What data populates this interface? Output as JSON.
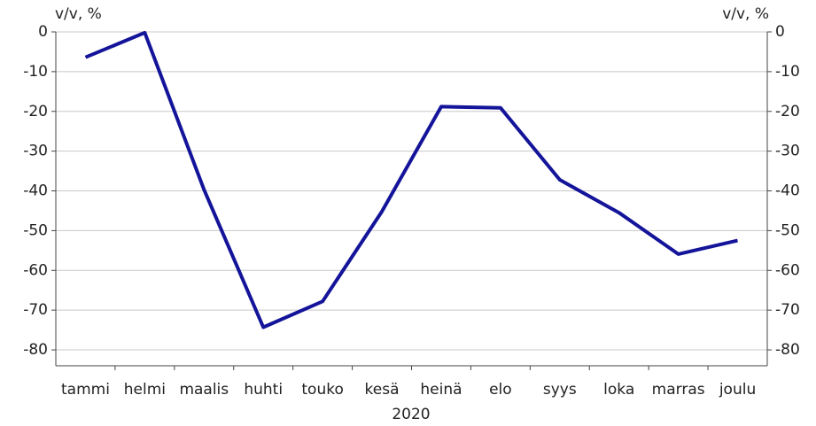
{
  "chart_data": {
    "type": "line",
    "y_label": "v/v, %",
    "y2_label": "v/v, %",
    "x_label": "2020",
    "categories": [
      "tammi",
      "helmi",
      "maalis",
      "huhti",
      "touko",
      "kesä",
      "heinä",
      "elo",
      "syys",
      "loka",
      "marras",
      "joulu"
    ],
    "series": [
      {
        "name": "v/v",
        "color": "#14149a",
        "values": [
          -6.4,
          -0.2,
          -39.7,
          -74.3,
          -67.8,
          -45.2,
          -18.8,
          -19.1,
          -37.2,
          -45.5,
          -55.9,
          -52.5
        ]
      }
    ],
    "ylim": [
      -84,
      0
    ],
    "yticks": [
      0,
      -10,
      -20,
      -30,
      -40,
      -50,
      -60,
      -70,
      -80
    ],
    "y2lim": [
      -84,
      0
    ],
    "y2ticks": [
      0,
      -10,
      -20,
      -30,
      -40,
      -50,
      -60,
      -70,
      -80
    ],
    "grid": true
  }
}
